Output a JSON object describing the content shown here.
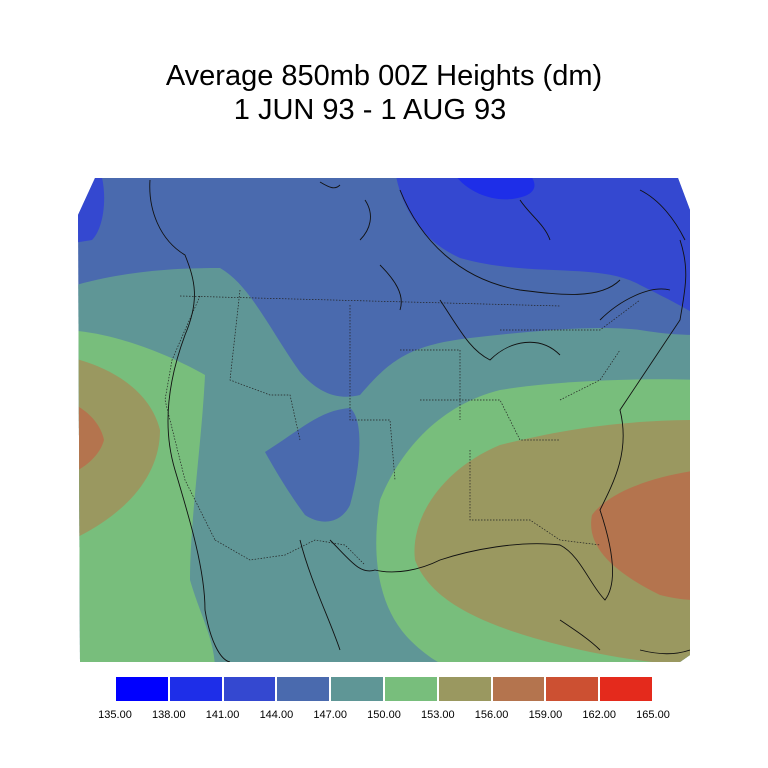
{
  "title": {
    "line1": "Average 850mb 00Z Heights (dm)",
    "line2": "1 JUN 93 - 1 AUG 93"
  },
  "colorbar": {
    "colors": [
      "#0000ff",
      "#1e2ee8",
      "#3448d0",
      "#4a6aae",
      "#5f9696",
      "#78be7c",
      "#9a9860",
      "#b4744e",
      "#cc5032",
      "#e42a1c"
    ],
    "labels": [
      "135.00",
      "138.00",
      "141.00",
      "144.00",
      "147.00",
      "150.00",
      "153.00",
      "156.00",
      "159.00",
      "162.00",
      "165.00"
    ]
  },
  "map": {
    "region": "North America",
    "fill_levels_dm": [
      "141-144",
      "144-147",
      "147-150",
      "150-153",
      "153-156",
      "156-159"
    ],
    "colors": {
      "141": "#3448d0",
      "144": "#4a6aae",
      "147": "#5f9696",
      "150": "#78be7c",
      "153": "#9a9860",
      "156": "#b4744e"
    }
  }
}
